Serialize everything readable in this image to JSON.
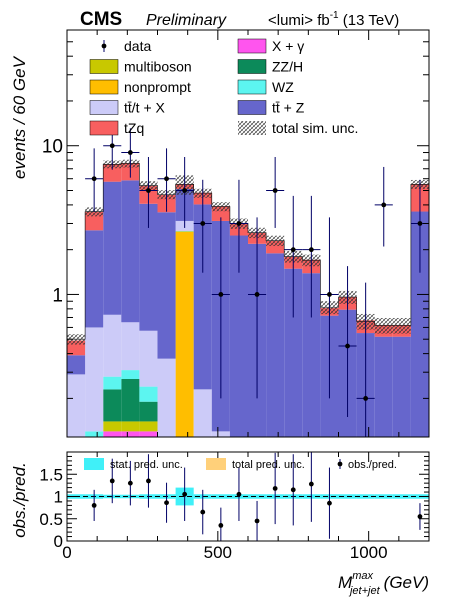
{
  "header": {
    "experiment": "CMS",
    "status": "Preliminary",
    "lumi_text": "<lumi> fb",
    "lumi_exp": "-1",
    "energy": "(13 TeV)"
  },
  "main_plot": {
    "ylabel": "events / 60 GeV",
    "y_scale": "log",
    "ylim": [
      0.11,
      60
    ],
    "y_ticks": [
      {
        "value": 1,
        "label": "1"
      },
      {
        "value": 10,
        "label": "10"
      }
    ]
  },
  "ratio_plot": {
    "ylabel": "obs./pred.",
    "ylim": [
      0,
      2
    ],
    "y_ticks": [
      {
        "value": 0,
        "label": "0"
      },
      {
        "value": 0.5,
        "label": "0.5"
      },
      {
        "value": 1,
        "label": "1"
      },
      {
        "value": 1.5,
        "label": "1.5"
      }
    ],
    "legend": [
      {
        "label": "stat. pred. unc.",
        "color": "#40f0f8",
        "type": "box"
      },
      {
        "label": "total pred. unc.",
        "color": "#ffd07a",
        "type": "box"
      },
      {
        "label": "obs./pred.",
        "type": "marker"
      }
    ]
  },
  "x_axis": {
    "label_main": "M",
    "label_sup": "max",
    "label_sub": "jet+jet",
    "label_unit": "(GeV)",
    "xlim": [
      0,
      1200
    ],
    "ticks": [
      {
        "value": 0,
        "label": "0"
      },
      {
        "value": 500,
        "label": "500"
      },
      {
        "value": 1000,
        "label": "1000"
      }
    ]
  },
  "legend": [
    {
      "key": "data",
      "label": "data",
      "type": "marker"
    },
    {
      "key": "xgamma",
      "label": "X + γ",
      "type": "box",
      "color": "#ff55ee"
    },
    {
      "key": "multiboson",
      "label": "multiboson",
      "type": "box",
      "color": "#c8c800"
    },
    {
      "key": "zzh",
      "label": "ZZ/H",
      "type": "box",
      "color": "#0c8a5a"
    },
    {
      "key": "nonprompt",
      "label": "nonprompt",
      "type": "box",
      "color": "#ffbe00"
    },
    {
      "key": "wz",
      "label": "WZ",
      "type": "box",
      "color": "#5cf5f0"
    },
    {
      "key": "ttx",
      "label": "tt̄/t + X",
      "type": "box",
      "color": "#cccbf8"
    },
    {
      "key": "ttz",
      "label": "tt̄ + Z",
      "type": "box",
      "color": "#6666cc"
    },
    {
      "key": "tzq",
      "label": "tZq",
      "type": "box",
      "color": "#f85f5f"
    },
    {
      "key": "unc",
      "label": "total sim. unc.",
      "type": "hatch"
    }
  ],
  "chart_data": {
    "type": "stacked_histogram_with_ratio",
    "x_unit": "GeV",
    "bin_edges": [
      0,
      60,
      120,
      180,
      240,
      300,
      360,
      420,
      480,
      540,
      600,
      660,
      720,
      780,
      840,
      900,
      960,
      1020,
      1080,
      1140,
      1200
    ],
    "stack_order": [
      "xgamma",
      "multiboson",
      "zzh",
      "nonprompt",
      "wz",
      "ttx",
      "ttz",
      "tzq"
    ],
    "series": [
      {
        "key": "xgamma",
        "name": "X + γ",
        "values": [
          0,
          0,
          0.12,
          0.12,
          0.12,
          0,
          0,
          0,
          0,
          0,
          0,
          0,
          0,
          0,
          0,
          0,
          0,
          0,
          0,
          0
        ]
      },
      {
        "key": "multiboson",
        "name": "multiboson",
        "values": [
          0.01,
          0.01,
          0.02,
          0.02,
          0.02,
          0.01,
          0.01,
          0.01,
          0.01,
          0.01,
          0.01,
          0.01,
          0.01,
          0.01,
          0.01,
          0.01,
          0.01,
          0.01,
          0.01,
          0.01
        ]
      },
      {
        "key": "zzh",
        "name": "ZZ/H",
        "values": [
          0.01,
          0.08,
          0.09,
          0.13,
          0.05,
          0.07,
          0.04,
          0.07,
          0.01,
          0.01,
          0.01,
          0.01,
          0.01,
          0.01,
          0.01,
          0.01,
          0.01,
          0.01,
          0.01,
          0.01
        ]
      },
      {
        "key": "nonprompt",
        "name": "nonprompt",
        "values": [
          0,
          0,
          0,
          0,
          0,
          0,
          2.6,
          0,
          0,
          0,
          0,
          0,
          0,
          0,
          0,
          0,
          0,
          0,
          0,
          0
        ]
      },
      {
        "key": "wz",
        "name": "WZ",
        "values": [
          0.03,
          0.03,
          0.05,
          0.04,
          0.05,
          0.03,
          0.02,
          0.03,
          0.02,
          0.01,
          0.01,
          0.01,
          0.01,
          0.01,
          0.01,
          0.01,
          0.01,
          0.01,
          0.01,
          0.01
        ]
      },
      {
        "key": "ttx",
        "name": "tt̄/t + X",
        "values": [
          0.24,
          0.48,
          0.45,
          0.34,
          0.33,
          0.26,
          0.45,
          0.12,
          0.08,
          0.06,
          0.06,
          0.06,
          0.06,
          0.06,
          0.04,
          0.04,
          0.04,
          0.04,
          0.04,
          0.08
        ]
      },
      {
        "key": "ttz",
        "name": "tt̄ + Z",
        "values": [
          0.1,
          2.1,
          5.0,
          5.2,
          3.5,
          3.2,
          2.0,
          3.8,
          3.0,
          2.4,
          2.1,
          1.8,
          1.4,
          1.3,
          0.65,
          0.72,
          0.48,
          0.45,
          0.45,
          3.5
        ]
      },
      {
        "key": "tzq",
        "name": "tZq",
        "values": [
          0.1,
          0.9,
          1.8,
          1.8,
          1.3,
          1.1,
          0.4,
          0.8,
          0.8,
          0.5,
          0.4,
          0.4,
          0.3,
          0.32,
          0.09,
          0.17,
          0.12,
          0.1,
          0.1,
          1.9
        ]
      }
    ],
    "total_prediction": [
      0.5,
      3.6,
      7.5,
      7.6,
      5.4,
      4.7,
      5.5,
      4.8,
      3.9,
      3.0,
      2.6,
      2.3,
      1.8,
      1.7,
      0.82,
      0.96,
      0.66,
      0.62,
      0.62,
      5.5
    ],
    "sim_unc_fraction": [
      0.08,
      0.07,
      0.06,
      0.06,
      0.07,
      0.07,
      0.15,
      0.07,
      0.07,
      0.08,
      0.08,
      0.08,
      0.09,
      0.09,
      0.1,
      0.1,
      0.12,
      0.12,
      0.12,
      0.07
    ],
    "data": {
      "x": [
        90,
        150,
        210,
        270,
        330,
        390,
        450,
        510,
        570,
        630,
        690,
        750,
        810,
        870,
        930,
        990,
        1050,
        1170
      ],
      "y": [
        6,
        10,
        9,
        5,
        6,
        5,
        3,
        1,
        3,
        1,
        5,
        2,
        2,
        1,
        0.45,
        0.2,
        4,
        3
      ],
      "y_err_low": [
        2.4,
        3.1,
        2.9,
        2.2,
        2.4,
        2.2,
        1.6,
        0.8,
        1.6,
        0.8,
        2.2,
        1.3,
        1.3,
        0.8,
        0.3,
        0.15,
        1.9,
        1.6
      ],
      "y_err_high": [
        3.6,
        4.3,
        4.1,
        3.4,
        3.6,
        3.4,
        2.9,
        2.3,
        2.9,
        2.3,
        3.4,
        2.6,
        2.6,
        2.3,
        1.1,
        1.0,
        3.2,
        2.9
      ],
      "x_err": 30
    },
    "ratio": {
      "x": [
        90,
        150,
        210,
        270,
        330,
        390,
        450,
        510,
        570,
        630,
        690,
        750,
        810,
        870,
        1170
      ],
      "y": [
        0.8,
        1.35,
        1.3,
        1.35,
        0.86,
        1.05,
        0.65,
        0.35,
        1.05,
        0.45,
        1.18,
        1.15,
        1.28,
        0.85,
        0.55
      ],
      "y_err": [
        0.35,
        0.5,
        0.5,
        0.6,
        0.45,
        0.6,
        0.5,
        0.4,
        0.6,
        0.45,
        0.8,
        0.8,
        0.85,
        0.8,
        0.3
      ],
      "stat_unc_halfwidth": [
        0.05,
        0.05,
        0.04,
        0.04,
        0.05,
        0.05,
        0.2,
        0.05,
        0.05,
        0.05,
        0.05,
        0.05,
        0.05,
        0.05,
        0.05,
        0.05,
        0.05,
        0.05,
        0.05,
        0.05
      ],
      "reference_line": 1
    }
  }
}
